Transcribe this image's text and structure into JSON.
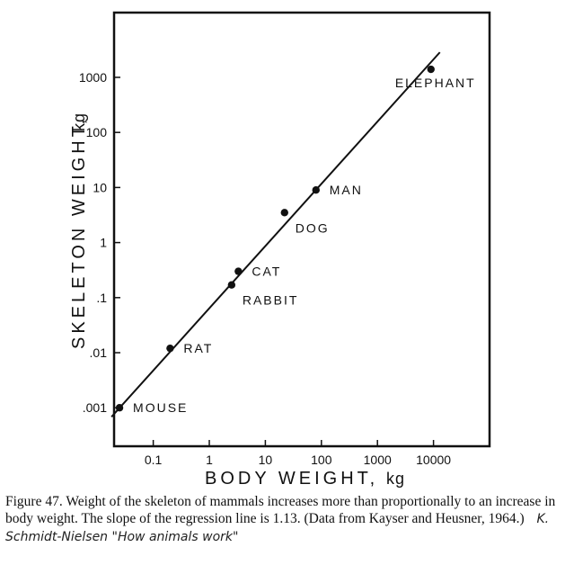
{
  "chart_data": {
    "type": "scatter",
    "x_scale": "log",
    "y_scale": "log",
    "xlabel": "BODY WEIGHT,",
    "xlabel_unit": "kg",
    "ylabel": "SKELETON WEIGHT,",
    "ylabel_unit": "kg",
    "xlim": [
      0.02,
      100000
    ],
    "ylim": [
      0.0002,
      15000
    ],
    "x_ticks": [
      {
        "value": 0.1,
        "label": "0.1"
      },
      {
        "value": 1,
        "label": "1"
      },
      {
        "value": 10,
        "label": "10"
      },
      {
        "value": 100,
        "label": "100"
      },
      {
        "value": 1000,
        "label": "1000"
      },
      {
        "value": 10000,
        "label": "10000"
      }
    ],
    "y_ticks": [
      {
        "value": 0.001,
        "label": ".001"
      },
      {
        "value": 0.01,
        "label": ".01"
      },
      {
        "value": 0.1,
        "label": ".1"
      },
      {
        "value": 1,
        "label": "1"
      },
      {
        "value": 10,
        "label": "10"
      },
      {
        "value": 100,
        "label": "100"
      },
      {
        "value": 1000,
        "label": "1000"
      }
    ],
    "points": [
      {
        "name": "MOUSE",
        "x": 0.025,
        "y": 0.001,
        "label_pos": "right"
      },
      {
        "name": "RAT",
        "x": 0.2,
        "y": 0.012,
        "label_pos": "right"
      },
      {
        "name": "RABBIT",
        "x": 2.5,
        "y": 0.17,
        "label_pos": "below-right"
      },
      {
        "name": "CAT",
        "x": 3.3,
        "y": 0.3,
        "label_pos": "right"
      },
      {
        "name": "DOG",
        "x": 22,
        "y": 3.5,
        "label_pos": "below-right"
      },
      {
        "name": "MAN",
        "x": 80,
        "y": 9,
        "label_pos": "right"
      },
      {
        "name": "ELEPHANT",
        "x": 9000,
        "y": 1400,
        "label_pos": "below-left"
      }
    ],
    "regression_line": {
      "slope": 1.13,
      "x_range": [
        0.018,
        13000
      ],
      "anchor": {
        "x": 1,
        "y": 0.064
      }
    },
    "grid": false,
    "legend": "none"
  },
  "caption": {
    "text": "Figure 47. Weight of the skeleton of mammals increases more than proportionally to an increase in body weight. The slope of the regression line is 1.13. (Data from Kayser and Heusner, 1964.)",
    "handwritten_note": "K. Schmidt-Nielsen \"How animals work\""
  },
  "colors": {
    "ink": "#111111",
    "background": "#ffffff"
  }
}
